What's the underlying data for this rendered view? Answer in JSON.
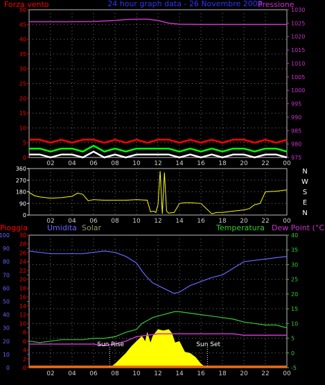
{
  "header": {
    "left_label": "Forza vento",
    "title": "24 hour graph data - 26 Novembre 2008",
    "right_label": "Pressione"
  },
  "wind_dir_labels": [
    "N",
    "W",
    "S",
    "E",
    "N"
  ],
  "bottom_labels": {
    "pioggia": "Pioggia",
    "umidita": "Umidita",
    "solar": "Solar",
    "temperatura": "Temperatura",
    "dew_point": "Dew Point (°C)"
  },
  "annotations": {
    "sun_rise": "Sun Rise",
    "sun_set": "Sun Set"
  },
  "colors": {
    "wind_gust": "#ff0000",
    "wind_avg": "#00ff00",
    "wind_low": "#ffffff",
    "pressure": "#cc33cc",
    "direction": "#ffff00",
    "humidity": "#6666ff",
    "temperature": "#33cc33",
    "dew_point": "#cc33cc",
    "solar": "#ffff00",
    "rain": "#ff6600",
    "axis_left": "#ff0000",
    "axis_right": "#cc33cc",
    "humidity_axis": "#6666ff",
    "temp_axis": "#33cc33"
  },
  "chart_data": [
    {
      "type": "line",
      "panel": "wind-pressure",
      "x_ticks": [
        "02",
        "04",
        "06",
        "08",
        "10",
        "12",
        "14",
        "16",
        "18",
        "20",
        "22",
        "00"
      ],
      "y_left_ticks": [
        "0",
        "5",
        "10",
        "15",
        "20",
        "25",
        "30",
        "35",
        "40",
        "45",
        "50"
      ],
      "y_left_range": [
        0,
        50
      ],
      "y_right_ticks": [
        "975",
        "980",
        "985",
        "990",
        "995",
        "1000",
        "1005",
        "1010",
        "1015",
        "1020",
        "1025",
        "1030"
      ],
      "y_right_range": [
        975,
        1031
      ],
      "series": [
        {
          "key": "pressure",
          "axis": "right",
          "x": [
            0,
            2,
            4,
            6,
            8,
            9,
            10,
            11,
            12,
            13,
            14,
            16,
            18,
            20,
            22,
            24
          ],
          "y": [
            1025.5,
            1025.5,
            1025.5,
            1025.6,
            1026,
            1026.3,
            1026.5,
            1026.5,
            1026,
            1025,
            1024.6,
            1024.5,
            1024.5,
            1024.5,
            1024.5,
            1024.5
          ]
        },
        {
          "key": "wind_gust",
          "axis": "left",
          "x": [
            0,
            1,
            2,
            3,
            4,
            5,
            6,
            7,
            8,
            9,
            10,
            11,
            12,
            13,
            14,
            15,
            16,
            17,
            18,
            19,
            20,
            21,
            22,
            23,
            24
          ],
          "y": [
            6,
            6,
            5,
            6,
            5,
            6,
            6,
            5,
            6,
            5,
            6,
            5,
            6,
            6,
            5,
            6,
            5,
            6,
            5,
            6,
            6,
            5,
            6,
            5,
            6
          ]
        },
        {
          "key": "wind_avg",
          "axis": "left",
          "x": [
            0,
            1,
            2,
            3,
            4,
            5,
            6,
            7,
            8,
            9,
            10,
            11,
            12,
            13,
            14,
            15,
            16,
            17,
            18,
            19,
            20,
            21,
            22,
            23,
            24
          ],
          "y": [
            3,
            3,
            2,
            3,
            3,
            2,
            4,
            2,
            3,
            2,
            3,
            3,
            3,
            3,
            2,
            3,
            2,
            3,
            2,
            3,
            3,
            2,
            3,
            3,
            2
          ]
        },
        {
          "key": "wind_low",
          "axis": "left",
          "x": [
            0,
            1,
            2,
            3,
            4,
            5,
            6,
            7,
            8,
            9,
            10,
            11,
            12,
            13,
            14,
            15,
            16,
            17,
            18,
            19,
            20,
            21,
            22,
            23,
            24
          ],
          "y": [
            1,
            1,
            0,
            1,
            1,
            0,
            2,
            0,
            1,
            0,
            1,
            1,
            1,
            1,
            0,
            1,
            0,
            1,
            0,
            1,
            1,
            0,
            1,
            1,
            0
          ]
        }
      ]
    },
    {
      "type": "line",
      "panel": "wind-direction",
      "x_ticks": [
        "02",
        "04",
        "06",
        "08",
        "10",
        "12",
        "14",
        "16",
        "18",
        "20",
        "22",
        "00"
      ],
      "y_ticks": [
        "0",
        "90",
        "180",
        "270",
        "360"
      ],
      "y_range": [
        0,
        360
      ],
      "series": [
        {
          "key": "direction",
          "x": [
            0,
            0.5,
            1,
            2,
            3,
            4,
            4.5,
            5,
            5.5,
            6,
            7,
            8,
            9,
            10,
            11,
            11.3,
            11.6,
            11.8,
            12,
            12.2,
            12.4,
            12.6,
            12.8,
            13,
            13.5,
            14,
            14.5,
            15,
            16,
            17,
            17.5,
            18,
            19,
            20,
            20.5,
            21,
            21.5,
            22,
            23,
            24
          ],
          "y": [
            175,
            150,
            140,
            130,
            135,
            145,
            170,
            160,
            110,
            120,
            115,
            115,
            115,
            120,
            115,
            25,
            30,
            20,
            80,
            340,
            10,
            330,
            30,
            15,
            20,
            90,
            95,
            95,
            90,
            10,
            20,
            20,
            30,
            40,
            50,
            80,
            90,
            180,
            185,
            195
          ]
        }
      ]
    },
    {
      "type": "line",
      "panel": "temp-humidity-solar-rain",
      "x_ticks": [
        "02",
        "04",
        "06",
        "08",
        "10",
        "12",
        "14",
        "16",
        "18",
        "20",
        "22",
        "00"
      ],
      "y_rain_ticks": [
        "0",
        "2",
        "4",
        "6",
        "8",
        "10",
        "12",
        "14",
        "16",
        "18",
        "20",
        "22",
        "24",
        "26",
        "28",
        "30"
      ],
      "y_rain_range": [
        0,
        30
      ],
      "y_humidity_ticks": [
        "0",
        "10",
        "20",
        "30",
        "40",
        "50",
        "60",
        "70",
        "80",
        "90",
        "100"
      ],
      "y_humidity_range": [
        0,
        100
      ],
      "y_temp_ticks": [
        "-5",
        "0",
        "5",
        "10",
        "15",
        "20",
        "25",
        "30",
        "35",
        "40"
      ],
      "y_temp_range": [
        -5,
        40
      ],
      "series": [
        {
          "key": "humidity",
          "axis": "humidity",
          "x": [
            0,
            1,
            2,
            3,
            4,
            5,
            6,
            7,
            8,
            9,
            10,
            10.5,
            11,
            11.5,
            12,
            12.5,
            13,
            13.5,
            14,
            15,
            16,
            17,
            18,
            19,
            20,
            21,
            22,
            23,
            24
          ],
          "y": [
            88,
            87,
            86,
            86,
            86,
            86,
            87,
            88,
            87,
            84,
            79,
            73,
            68,
            64,
            62,
            60,
            58,
            56,
            57,
            62,
            65,
            68,
            70,
            75,
            80,
            81,
            82,
            83,
            84
          ]
        },
        {
          "key": "temperature",
          "axis": "temp",
          "x": [
            0,
            1,
            2,
            3,
            4,
            5,
            6,
            7,
            8,
            9,
            10,
            10.5,
            11,
            11.5,
            12,
            12.5,
            13,
            13.5,
            14,
            15,
            16,
            17,
            18,
            19,
            20,
            21,
            22,
            23,
            24
          ],
          "y": [
            4,
            3.5,
            4,
            4.5,
            4.5,
            4.5,
            5,
            5,
            5.5,
            7,
            8,
            10,
            11,
            12,
            12.5,
            13,
            13.5,
            14,
            14,
            13.5,
            13,
            12.5,
            12,
            11.5,
            10.5,
            10,
            9.5,
            9.5,
            8.5
          ]
        },
        {
          "key": "dew_point",
          "axis": "temp",
          "x": [
            0,
            2,
            4,
            6,
            7,
            8,
            9,
            10,
            11,
            12,
            13,
            14,
            15,
            16,
            17,
            18,
            19,
            20,
            21,
            22,
            23,
            24
          ],
          "y": [
            3,
            3,
            3,
            3,
            2.5,
            3,
            4,
            5.5,
            6,
            6.5,
            6.5,
            6.5,
            6.5,
            6.5,
            6.5,
            6.5,
            6.5,
            6,
            6,
            6,
            6,
            6
          ]
        },
        {
          "key": "solar",
          "axis": "humidity",
          "x": [
            7.5,
            8,
            8.5,
            9,
            9.5,
            10,
            10.5,
            10.8,
            11,
            11.3,
            11.5,
            11.8,
            12,
            12.5,
            13,
            13.3,
            13.6,
            14,
            14.5,
            15,
            15.5,
            16,
            16.5
          ],
          "y": [
            0,
            3,
            7,
            11,
            16,
            20,
            24,
            20,
            27,
            19,
            24,
            27,
            29,
            28,
            29,
            26,
            19,
            20,
            12,
            11,
            8,
            3,
            0
          ]
        },
        {
          "key": "rain",
          "axis": "rain",
          "x": [
            0,
            24
          ],
          "y": [
            0,
            0
          ]
        }
      ],
      "sun_rise_x": 7.5,
      "sun_set_x": 16.6
    }
  ]
}
